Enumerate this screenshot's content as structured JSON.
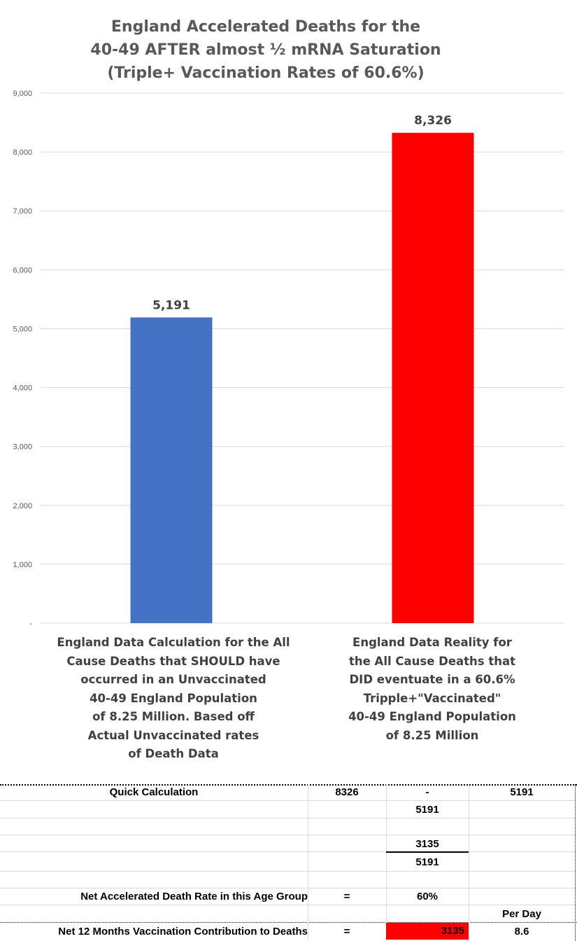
{
  "chart_data": {
    "type": "bar",
    "title_lines": [
      "England Accelerated Deaths for the",
      "40-49 AFTER almost ½ mRNA Saturation",
      "(Triple+ Vaccination Rates of 60.6%)"
    ],
    "categories": [
      "England Data Calculation for the All Cause Deaths that SHOULD have occurred in an Unvaccinated 40-49 England Population of 8.25 Million. Based off Actual Unvaccinated rates of Death Data",
      "England Data Reality for the All Cause Deaths that DID eventuate in a 60.6% Tripple+\"Vaccinated\" 40-49 England Population of 8.25 Million"
    ],
    "category_label_lines": [
      [
        "England Data Calculation for the All",
        "Cause Deaths that SHOULD have",
        "occurred in an Unvaccinated",
        "40-49 England Population",
        "of 8.25 Million. Based off",
        "Actual Unvaccinated rates",
        "of Death Data"
      ],
      [
        "England Data Reality for",
        "the All Cause Deaths that",
        "DID eventuate in a  60.6%",
        "Tripple+\"Vaccinated\"",
        "40-49 England Population",
        "of 8.25 Million"
      ]
    ],
    "values": [
      5191,
      8326
    ],
    "data_labels": [
      "5,191",
      "8,326"
    ],
    "bar_colors": [
      "#4472c4",
      "#ff0000"
    ],
    "ylim": [
      0,
      9000
    ],
    "yticks": [
      0,
      1000,
      2000,
      3000,
      4000,
      5000,
      6000,
      7000,
      8000,
      9000
    ],
    "ytick_labels": [
      "-",
      "1,000",
      "2,000",
      "3,000",
      "4,000",
      "5,000",
      "6,000",
      "7,000",
      "8,000",
      "9,000"
    ],
    "grid": true,
    "xlabel": "",
    "ylabel": ""
  },
  "table": {
    "quick_calc_label": "Quick Calculation",
    "quick_a": "8326",
    "quick_op": "-",
    "quick_b": "5191",
    "r1": "5191",
    "r2": "3135",
    "r3": "5191",
    "rate_label": "Net Accelerated Death Rate in this Age Group",
    "rate_eq": "=",
    "rate_value": "60%",
    "per_day_header": "Per Day",
    "contrib_label": "Net 12 Months Vaccination Contribution to Deaths",
    "contrib_eq": "=",
    "contrib_value": "3135",
    "per_day_value": "8.6",
    "highlight_color": "#ff0000"
  }
}
